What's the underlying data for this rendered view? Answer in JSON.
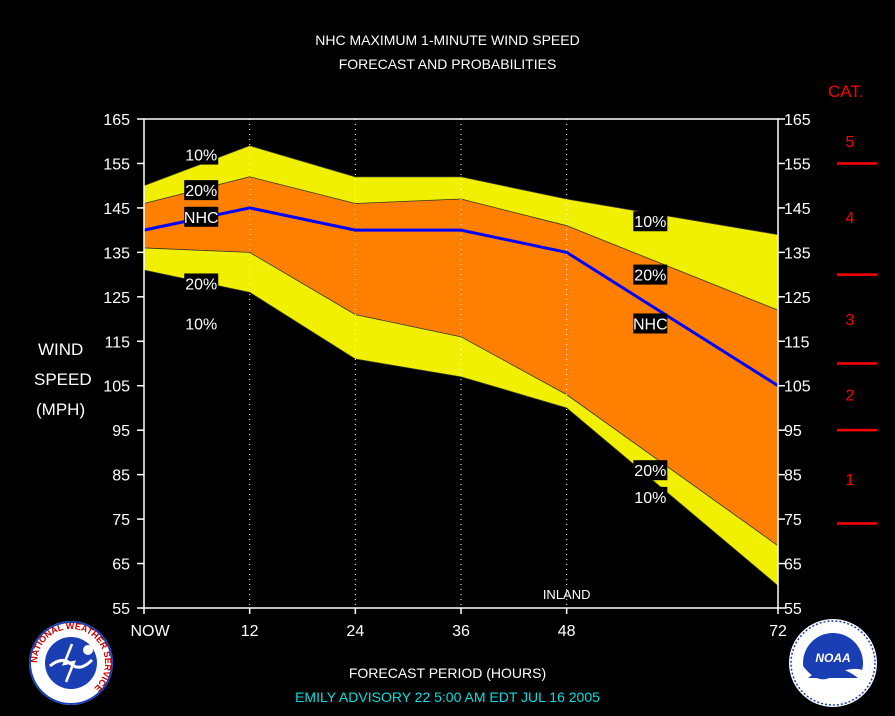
{
  "title_line1": "NHC MAXIMUM 1-MINUTE WIND SPEED",
  "title_line2": "FORECAST AND PROBABILITIES",
  "xlabel": "FORECAST PERIOD (HOURS)",
  "advisory": "EMILY   ADVISORY  22 5:00 AM  EDT JUL 16 2005",
  "logos": {
    "left": "NATIONAL WEATHER SERVICE",
    "right_text": "NOAA"
  },
  "colors": {
    "outer_band": "#f0f000",
    "inner_band": "#ff8000",
    "forecast_line": "#0000ff",
    "category": "#ff0000",
    "advisory": "#00e0e0"
  },
  "chart_data": {
    "type": "area",
    "x": [
      0,
      12,
      24,
      36,
      48,
      72
    ],
    "x_tick_labels": [
      "NOW",
      "12",
      "24",
      "36",
      "48",
      "72"
    ],
    "xlim": [
      0,
      72
    ],
    "ylim": [
      55,
      165
    ],
    "y_ticks": [
      55,
      65,
      75,
      85,
      95,
      105,
      115,
      125,
      135,
      145,
      155,
      165
    ],
    "ylabel": [
      "WIND",
      "SPEED",
      "(MPH)"
    ],
    "series": [
      {
        "name": "10%",
        "values": [
          150,
          159,
          152,
          152,
          147,
          139
        ]
      },
      {
        "name": "20%",
        "values": [
          146,
          152,
          146,
          147,
          141,
          122
        ]
      },
      {
        "name": "NHC",
        "values": [
          140,
          145,
          140,
          140,
          135,
          105
        ]
      },
      {
        "name": "20%",
        "values": [
          136,
          135,
          121,
          116,
          103,
          69
        ]
      },
      {
        "name": "10%",
        "values": [
          131,
          126,
          111,
          107,
          100,
          60
        ]
      }
    ],
    "band_labels": [
      {
        "text": "10%",
        "x": 6.5,
        "y": 157
      },
      {
        "text": "20%",
        "x": 6.5,
        "y": 149
      },
      {
        "text": "NHC",
        "x": 6.5,
        "y": 143
      },
      {
        "text": "20%",
        "x": 6.5,
        "y": 128
      },
      {
        "text": "10%",
        "x": 6.5,
        "y": 119
      },
      {
        "text": "10%",
        "x": 57.5,
        "y": 142
      },
      {
        "text": "20%",
        "x": 57.5,
        "y": 130
      },
      {
        "text": "NHC",
        "x": 57.5,
        "y": 119
      },
      {
        "text": "20%",
        "x": 57.5,
        "y": 86
      },
      {
        "text": "10%",
        "x": 57.5,
        "y": 80
      }
    ],
    "annotation": {
      "text": "INLAND",
      "x": 48,
      "y": 57
    },
    "categories": [
      {
        "label": "5",
        "value": 160
      },
      {
        "label": "4",
        "value": 143
      },
      {
        "label": "3",
        "value": 120
      },
      {
        "label": "2",
        "value": 103
      },
      {
        "label": "1",
        "value": 84
      }
    ],
    "category_title": "CAT.",
    "category_boundaries": [
      155,
      130,
      110,
      95,
      74
    ]
  }
}
